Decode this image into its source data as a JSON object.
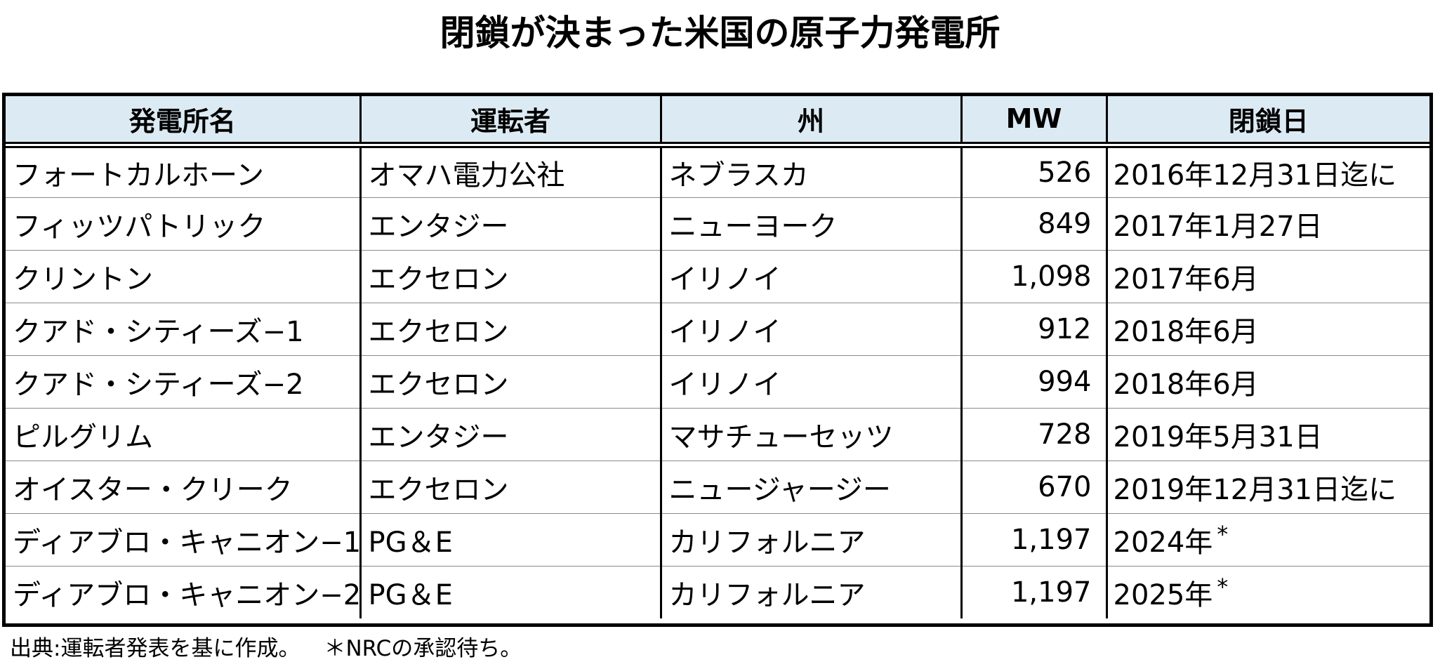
{
  "title": "閉鎖が決まった米国の原子力発電所",
  "table": {
    "headers": [
      "発電所名",
      "運転者",
      "州",
      "MW",
      "閉鎖日"
    ],
    "rows": [
      {
        "name": "フォートカルホーン",
        "operator": "オマハ電力公社",
        "state": "ネブラスカ",
        "mw": "526",
        "date": "2016年12月31日迄に",
        "note": ""
      },
      {
        "name": "フィッツパトリック",
        "operator": "エンタジー",
        "state": "ニューヨーク",
        "mw": "849",
        "date": "2017年1月27日",
        "note": ""
      },
      {
        "name": "クリントン",
        "operator": "エクセロン",
        "state": "イリノイ",
        "mw": "1,098",
        "date": "2017年6月",
        "note": ""
      },
      {
        "name": "クアド・シティーズ−1",
        "operator": "エクセロン",
        "state": "イリノイ",
        "mw": "912",
        "date": "2018年6月",
        "note": ""
      },
      {
        "name": "クアド・シティーズ−2",
        "operator": "エクセロン",
        "state": "イリノイ",
        "mw": "994",
        "date": "2018年6月",
        "note": ""
      },
      {
        "name": "ピルグリム",
        "operator": "エンタジー",
        "state": "マサチューセッツ",
        "mw": "728",
        "date": "2019年5月31日",
        "note": ""
      },
      {
        "name": "オイスター・クリーク",
        "operator": "エクセロン",
        "state": "ニュージャージー",
        "mw": "670",
        "date": "2019年12月31日迄に",
        "note": ""
      },
      {
        "name": "ディアブロ・キャニオン−1",
        "operator": "PG＆E",
        "state": "カリフォルニア",
        "mw": "1,197",
        "date": "2024年",
        "note": "*"
      },
      {
        "name": "ディアブロ・キャニオン−2",
        "operator": "PG＆E",
        "state": "カリフォルニア",
        "mw": "1,197",
        "date": "2025年",
        "note": "*"
      }
    ]
  },
  "footnote": {
    "source": "出典:運転者発表を基に作成。",
    "note": "＊NRCの承認待ち。"
  }
}
